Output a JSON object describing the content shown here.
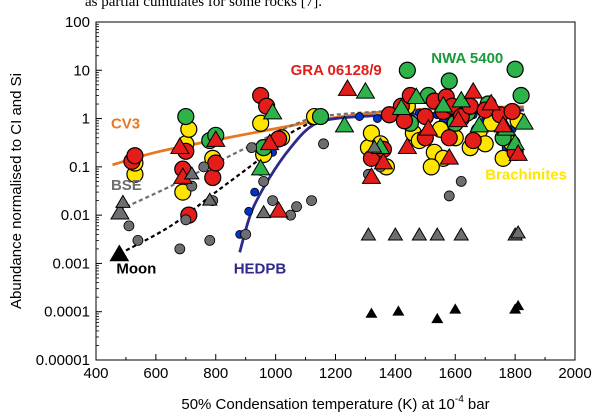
{
  "caption_fragment": "as partial cumulates for some rocks [7].",
  "chart_data": {
    "type": "scatter",
    "x_axis": {
      "label": "50% Condensation temperature (K) at 10",
      "label_sup": "-4",
      "label_tail": " bar",
      "range": [
        400,
        2000
      ],
      "ticks": [
        400,
        600,
        800,
        1000,
        1200,
        1400,
        1600,
        1800,
        2000
      ],
      "tick_labels": [
        "400",
        "600",
        "800",
        "1000",
        "1200",
        "1400",
        "1600",
        "1800",
        "2000"
      ]
    },
    "y_axis": {
      "label": "Abundance normalised to CI and Si",
      "scale": "log",
      "range": [
        1e-05,
        100
      ],
      "ticks": [
        1e-05,
        0.0001,
        0.001,
        0.01,
        0.1,
        1,
        10,
        100
      ],
      "tick_labels": [
        "0.00001",
        "0.0001",
        "0.001",
        "0.01",
        "0.1",
        "1",
        "10",
        "100"
      ]
    },
    "grid": false,
    "annotations": [
      {
        "text": "CV3",
        "color": "#e87722",
        "x": 450,
        "y": 0.62
      },
      {
        "text": "BSE",
        "color": "#6d6e71",
        "x": 450,
        "y": 0.033
      },
      {
        "text": "Moon",
        "color": "#000000",
        "x": 468,
        "y": 0.00062
      },
      {
        "text": "HEDPB",
        "color": "#2e2a8c",
        "x": 860,
        "y": 0.00062
      },
      {
        "text": "GRA 06128/9",
        "color": "#e31d1a",
        "x": 1050,
        "y": 8.0
      },
      {
        "text": "NWA 5400",
        "color": "#1a9a3c",
        "x": 1520,
        "y": 14.0
      },
      {
        "text": "Brachinites",
        "color": "#ffe500",
        "x": 1700,
        "y": 0.055
      }
    ],
    "series": [
      {
        "name": "CV3",
        "kind": "line",
        "color": "#e87722",
        "points": [
          [
            455,
            0.11
          ],
          [
            600,
            0.2
          ],
          [
            800,
            0.36
          ],
          [
            1000,
            0.62
          ],
          [
            1200,
            1.05
          ],
          [
            1400,
            1.45
          ],
          [
            1600,
            1.65
          ],
          [
            1830,
            1.75
          ]
        ]
      },
      {
        "name": "BSE",
        "kind": "line",
        "color": "#6d6e71",
        "dash": true,
        "points": [
          [
            480,
            0.013
          ],
          [
            650,
            0.04
          ],
          [
            800,
            0.12
          ],
          [
            950,
            0.35
          ],
          [
            1050,
            0.7
          ],
          [
            1150,
            1.1
          ],
          [
            1350,
            1.4
          ],
          [
            1600,
            1.6
          ],
          [
            1830,
            1.7
          ]
        ]
      },
      {
        "name": "Moon",
        "kind": "line",
        "color": "#000000",
        "dash": true,
        "points": [
          [
            480,
            0.0016
          ],
          [
            650,
            0.006
          ],
          [
            800,
            0.03
          ],
          [
            950,
            0.15
          ],
          [
            1050,
            0.5
          ],
          [
            1150,
            1.0
          ]
        ]
      },
      {
        "name": "HEDPB",
        "kind": "line",
        "color": "#2e2a8c",
        "points": [
          [
            880,
            0.0017
          ],
          [
            920,
            0.012
          ],
          [
            980,
            0.06
          ],
          [
            1050,
            0.25
          ],
          [
            1120,
            0.7
          ],
          [
            1200,
            1.0
          ],
          [
            1400,
            1.2
          ],
          [
            1600,
            1.3
          ],
          [
            1830,
            1.5
          ]
        ]
      },
      {
        "name": "BSE endpoint",
        "kind": "triangle",
        "color": "#6d6e71",
        "size": 9,
        "points": [
          [
            480,
            0.011
          ]
        ]
      },
      {
        "name": "Moon endpoint",
        "kind": "triangle",
        "color": "#000000",
        "size": 9,
        "points": [
          [
            478,
            0.0015
          ]
        ]
      },
      {
        "name": "HEDPB points",
        "kind": "circle",
        "color": "#0033cc",
        "size": 4,
        "points": [
          [
            880,
            0.004
          ],
          [
            910,
            0.012
          ],
          [
            930,
            0.03
          ],
          [
            950,
            0.08
          ],
          [
            990,
            0.2
          ],
          [
            1030,
            0.45
          ],
          [
            1120,
            0.9
          ],
          [
            1160,
            0.95
          ],
          [
            1280,
            1.1
          ],
          [
            1340,
            1.0
          ],
          [
            1380,
            1.2
          ],
          [
            1420,
            1.0
          ],
          [
            1450,
            1.5
          ],
          [
            1480,
            1.3
          ],
          [
            1500,
            1.0
          ],
          [
            1540,
            1.2
          ],
          [
            1560,
            0.9
          ],
          [
            1580,
            1.3
          ],
          [
            1620,
            1.4
          ],
          [
            1660,
            1.2
          ],
          [
            1700,
            0.9
          ],
          [
            1720,
            1.0
          ],
          [
            1770,
            0.25
          ],
          [
            1790,
            0.6
          ]
        ]
      },
      {
        "name": "Yellow circles (Brachinites)",
        "kind": "circle",
        "color": "#ffe500",
        "size": 8,
        "points": [
          [
            530,
            0.07
          ],
          [
            530,
            0.12
          ],
          [
            690,
            0.03
          ],
          [
            700,
            0.3
          ],
          [
            710,
            0.6
          ],
          [
            790,
            0.15
          ],
          [
            950,
            0.8
          ],
          [
            960,
            0.18
          ],
          [
            1020,
            0.4
          ],
          [
            1130,
            1.1
          ],
          [
            1310,
            0.25
          ],
          [
            1320,
            0.5
          ],
          [
            1350,
            0.3
          ],
          [
            1370,
            0.1
          ],
          [
            1460,
            0.5
          ],
          [
            1480,
            0.35
          ],
          [
            1530,
            0.2
          ],
          [
            1550,
            0.6
          ],
          [
            1560,
            0.15
          ],
          [
            1600,
            0.4
          ],
          [
            1620,
            1.0
          ],
          [
            1650,
            0.25
          ],
          [
            1680,
            0.55
          ],
          [
            1700,
            0.3
          ],
          [
            1720,
            0.8
          ],
          [
            1760,
            0.15
          ],
          [
            1790,
            0.3
          ],
          [
            1810,
            0.9
          ],
          [
            1520,
            0.1
          ],
          [
            1440,
            1.8
          ]
        ]
      },
      {
        "name": "Green circles (NWA 5400)",
        "kind": "circle",
        "color": "#2db34a",
        "size": 8,
        "points": [
          [
            700,
            1.1
          ],
          [
            780,
            0.35
          ],
          [
            800,
            0.45
          ],
          [
            960,
            0.25
          ],
          [
            1150,
            1.1
          ],
          [
            1440,
            10.0
          ],
          [
            1450,
            0.8
          ],
          [
            1510,
            3.0
          ],
          [
            1560,
            1.5
          ],
          [
            1580,
            6.0
          ],
          [
            1600,
            0.8
          ],
          [
            1640,
            1.3
          ],
          [
            1710,
            2.0
          ],
          [
            1760,
            0.4
          ],
          [
            1800,
            10.5
          ],
          [
            1820,
            3.0
          ]
        ]
      },
      {
        "name": "Red circles (GRA 06128/9)",
        "kind": "circle",
        "color": "#e31d1a",
        "size": 8,
        "points": [
          [
            520,
            0.13
          ],
          [
            530,
            0.17
          ],
          [
            690,
            0.09
          ],
          [
            700,
            0.21
          ],
          [
            710,
            0.01
          ],
          [
            790,
            0.06
          ],
          [
            800,
            0.12
          ],
          [
            950,
            3.0
          ],
          [
            970,
            1.8
          ],
          [
            1010,
            0.38
          ],
          [
            1320,
            0.15
          ],
          [
            1360,
            0.23
          ],
          [
            1420,
            1.8
          ],
          [
            1430,
            0.9
          ],
          [
            1450,
            3.0
          ],
          [
            1500,
            1.1
          ],
          [
            1530,
            2.3
          ],
          [
            1560,
            1.4
          ],
          [
            1570,
            2.8
          ],
          [
            1590,
            1.8
          ],
          [
            1620,
            1.1
          ],
          [
            1650,
            1.8
          ],
          [
            1700,
            1.5
          ],
          [
            1750,
            1.2
          ],
          [
            1790,
            1.4
          ],
          [
            1500,
            0.4
          ],
          [
            1580,
            0.4
          ],
          [
            1660,
            0.35
          ],
          [
            1800,
            0.2
          ],
          [
            1380,
            1.2
          ]
        ]
      },
      {
        "name": "Gray circles",
        "kind": "circle",
        "color": "#6d6e71",
        "size": 5,
        "points": [
          [
            510,
            0.006
          ],
          [
            540,
            0.003
          ],
          [
            680,
            0.002
          ],
          [
            700,
            0.008
          ],
          [
            720,
            0.04
          ],
          [
            760,
            0.1
          ],
          [
            780,
            0.003
          ],
          [
            790,
            0.02
          ],
          [
            900,
            0.004
          ],
          [
            920,
            0.25
          ],
          [
            960,
            0.05
          ],
          [
            990,
            0.02
          ],
          [
            1050,
            0.01
          ],
          [
            1070,
            0.015
          ],
          [
            1120,
            0.02
          ],
          [
            1160,
            0.3
          ],
          [
            1310,
            0.07
          ],
          [
            1350,
            0.1
          ],
          [
            1580,
            0.025
          ],
          [
            1620,
            0.05
          ]
        ]
      },
      {
        "name": "Green triangles (NWA 5400)",
        "kind": "triangle",
        "color": "#2db34a",
        "size": 9,
        "points": [
          [
            950,
            0.09
          ],
          [
            990,
            1.3
          ],
          [
            1230,
            0.7
          ],
          [
            1300,
            3.5
          ],
          [
            1350,
            0.25
          ],
          [
            1420,
            1.6
          ],
          [
            1470,
            2.7
          ],
          [
            1560,
            1.8
          ],
          [
            1620,
            2.3
          ],
          [
            1680,
            0.7
          ],
          [
            1770,
            0.6
          ],
          [
            1800,
            0.3
          ],
          [
            1830,
            0.8
          ]
        ]
      },
      {
        "name": "Red triangles (GRA 06128/9)",
        "kind": "triangle",
        "color": "#e31d1a",
        "size": 9,
        "points": [
          [
            680,
            0.25
          ],
          [
            690,
            0.06
          ],
          [
            800,
            0.35
          ],
          [
            980,
            0.3
          ],
          [
            1010,
            0.012
          ],
          [
            1240,
            4.0
          ],
          [
            1320,
            0.06
          ],
          [
            1360,
            0.12
          ],
          [
            1440,
            0.25
          ],
          [
            1510,
            0.6
          ],
          [
            1580,
            0.15
          ],
          [
            1610,
            0.9
          ],
          [
            1660,
            3.5
          ],
          [
            1720,
            2.0
          ],
          [
            1760,
            0.7
          ],
          [
            1810,
            0.18
          ]
        ]
      },
      {
        "name": "Gray triangles",
        "kind": "triangle",
        "color": "#6d6e71",
        "size": 7,
        "points": [
          [
            490,
            0.018
          ],
          [
            720,
            0.07
          ],
          [
            780,
            0.02
          ],
          [
            960,
            0.011
          ],
          [
            1310,
            0.0038
          ],
          [
            1330,
            0.25
          ],
          [
            1400,
            0.0038
          ],
          [
            1480,
            0.0038
          ],
          [
            1540,
            0.0038
          ],
          [
            1620,
            0.0038
          ],
          [
            1800,
            0.0038
          ],
          [
            1810,
            0.0042
          ]
        ]
      },
      {
        "name": "Black triangles",
        "kind": "triangle",
        "color": "#000000",
        "size": 6,
        "points": [
          [
            1320,
            9e-05
          ],
          [
            1410,
            0.0001
          ],
          [
            1540,
            7e-05
          ],
          [
            1600,
            0.00011
          ],
          [
            1800,
            0.00011
          ],
          [
            1810,
            0.00013
          ]
        ]
      }
    ]
  }
}
